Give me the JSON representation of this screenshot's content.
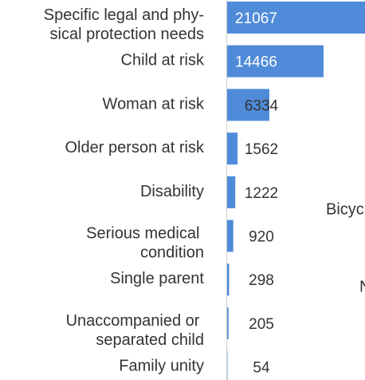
{
  "chart_data": {
    "type": "barh",
    "categories": [
      "Specific legal and phy-\nsical protection needs",
      "Child at risk",
      "Woman at risk",
      "Older person at risk",
      "Disability",
      "Serious medical \ncondition",
      "Single parent",
      "Unaccompanied or \nseparated child",
      "Family unity"
    ],
    "values": [
      21067,
      14466,
      6334,
      1562,
      1222,
      920,
      298,
      205,
      54
    ],
    "color": "#4f8bd8",
    "annotations": [
      "Bicyc",
      "N"
    ]
  }
}
